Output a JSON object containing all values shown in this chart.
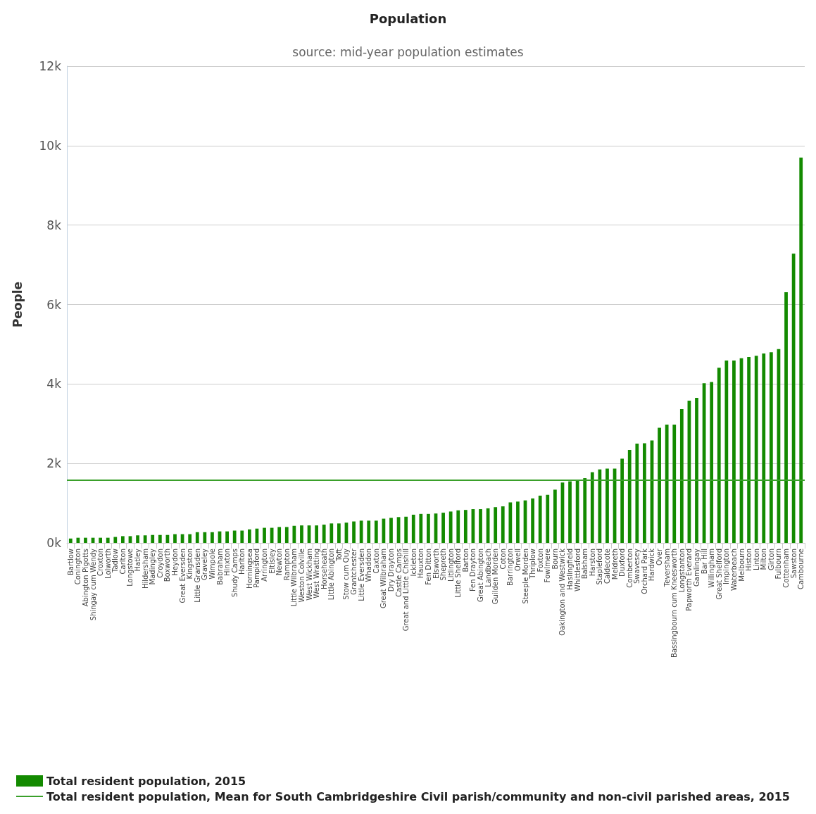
{
  "chart_data": {
    "type": "bar",
    "title": "Population",
    "subtitle": "source: mid-year population estimates",
    "ylabel": "People",
    "categories": [
      "Bartlow",
      "Conington",
      "Abington Pigotts",
      "Shingay cum Wendy",
      "Croxton",
      "Lolworth",
      "Tadlow",
      "Carlton",
      "Longstowe",
      "Hatley",
      "Hildersham",
      "Madingley",
      "Croydon",
      "Boxworth",
      "Heydon",
      "Great Eversden",
      "Kingston",
      "Little Gransden",
      "Graveley",
      "Wimpole",
      "Babraham",
      "Hinxton",
      "Shudy Camps",
      "Harlton",
      "Horningsea",
      "Pampisford",
      "Arrington",
      "Eltisley",
      "Newton",
      "Rampton",
      "Little Wilbraham",
      "Weston Colville",
      "West Wickham",
      "West Wratting",
      "Horseheath",
      "Little Abington",
      "Toft",
      "Stow cum Quy",
      "Grantchester",
      "Little Eversden",
      "Whaddon",
      "Caxton",
      "Great Wilbraham",
      "Dry Drayton",
      "Castle Camps",
      "Great and Little Chishill",
      "Ickleton",
      "Hauxton",
      "Fen Ditton",
      "Elsworth",
      "Shepreth",
      "Litlington",
      "Little Shelford",
      "Barton",
      "Fen Drayton",
      "Great Abington",
      "Landbeach",
      "Guilden Morden",
      "Coton",
      "Barrington",
      "Orwell",
      "Steeple Morden",
      "Thriplow",
      "Foxton",
      "Fowlmere",
      "Bourn",
      "Oakington and Westwick",
      "Haslingfield",
      "Whittlesford",
      "Balsham",
      "Harston",
      "Stapleford",
      "Caldecote",
      "Meldreth",
      "Duxford",
      "Comberton",
      "Swavesey",
      "Orchard Park",
      "Hardwick",
      "Over",
      "Teversham",
      "Bassingbourn cum Kneesworth",
      "Longstanton",
      "Papworth Everard",
      "Gamlingay",
      "Bar Hill",
      "Willingham",
      "Great Shelford",
      "Impington",
      "Waterbeach",
      "Melbourn",
      "Histon",
      "Linton",
      "Milton",
      "Girton",
      "Fulbourn",
      "Cottenham",
      "Sawston",
      "Cambourne"
    ],
    "series": [
      {
        "name": "Total resident population, 2015",
        "color": "#138a00",
        "values": [
          110,
          130,
          130,
          130,
          130,
          130,
          150,
          170,
          170,
          190,
          190,
          200,
          200,
          200,
          220,
          220,
          220,
          270,
          270,
          270,
          290,
          290,
          310,
          310,
          340,
          360,
          380,
          380,
          400,
          400,
          430,
          440,
          440,
          440,
          460,
          490,
          490,
          510,
          540,
          560,
          560,
          560,
          610,
          630,
          650,
          660,
          710,
          730,
          730,
          740,
          760,
          790,
          820,
          830,
          850,
          850,
          870,
          900,
          920,
          1020,
          1040,
          1070,
          1120,
          1190,
          1210,
          1340,
          1520,
          1550,
          1580,
          1630,
          1780,
          1850,
          1870,
          1870,
          2120,
          2340,
          2500,
          2510,
          2580,
          2900,
          2980,
          2980,
          3370,
          3580,
          3650,
          4020,
          4050,
          4410,
          4590,
          4590,
          4650,
          4680,
          4710,
          4770,
          4800,
          4880,
          6310,
          7280,
          9700
        ]
      }
    ],
    "ylim": [
      0,
      12000
    ],
    "yticks": [
      {
        "value": 0,
        "label": "0k"
      },
      {
        "value": 2000,
        "label": "2k"
      },
      {
        "value": 4000,
        "label": "4k"
      },
      {
        "value": 6000,
        "label": "6k"
      },
      {
        "value": 8000,
        "label": "8k"
      },
      {
        "value": 10000,
        "label": "10k"
      },
      {
        "value": 12000,
        "label": "12k"
      }
    ],
    "ref_lines": [
      {
        "axis": "y",
        "value": 1580,
        "label": "Total resident population, Mean for South Cambridgeshire Civil parish/community and non-civil parished areas, 2015",
        "color": "#3aa02a",
        "line_style": "solid"
      }
    ],
    "grid": "y",
    "legend": "bottom left"
  }
}
